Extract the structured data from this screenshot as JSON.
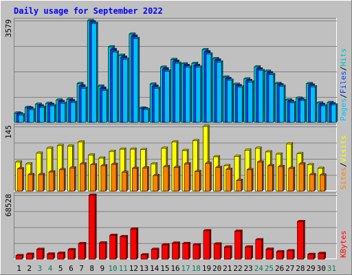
{
  "chart_data": {
    "type": "bar",
    "title": "Daily usage for September 2022",
    "categories": [
      "1",
      "2",
      "3",
      "4",
      "5",
      "6",
      "7",
      "8",
      "9",
      "10",
      "11",
      "12",
      "13",
      "14",
      "15",
      "16",
      "17",
      "18",
      "19",
      "20",
      "21",
      "22",
      "23",
      "24",
      "25",
      "26",
      "27",
      "28",
      "29",
      "30",
      "31"
    ],
    "weekend_days": [
      "3",
      "4",
      "10",
      "11",
      "17",
      "18",
      "24",
      "25",
      "31"
    ],
    "colors": {
      "frame": "#c0c0c0",
      "plot_bg": "#c0c0c0",
      "hits": "#00c0c0",
      "files": "#0040ff",
      "pages": "#00c0ff",
      "visits": "#ffff00",
      "sites": "#ff8000",
      "kbytes": "#ff0000",
      "title": "#0000ff",
      "weekday_tick": "#000000",
      "weekend_tick": "#00805c"
    },
    "panels": [
      {
        "id": "hits-files-pages",
        "ymax_label": "3579",
        "ylim": [
          0,
          3579
        ],
        "legend": [
          {
            "text": "Pages",
            "color": "#00c0ff"
          },
          {
            "text": "/",
            "color": "#000000"
          },
          {
            "text": "Files",
            "color": "#0040ff"
          },
          {
            "text": "/",
            "color": "#000000"
          },
          {
            "text": "Hits",
            "color": "#00c0c0"
          }
        ],
        "series": [
          {
            "name": "Hits",
            "values": [
              329,
              528,
              637,
              670,
              787,
              813,
              1363,
              3579,
              1277,
              2656,
              2360,
              3103,
              502,
              1349,
              1940,
              2213,
              2057,
              2074,
              2558,
              2242,
              1595,
              1340,
              1527,
              1953,
              1797,
              1368,
              788,
              852,
              1363,
              681,
              698
            ]
          },
          {
            "name": "Files",
            "values": [
              300,
              500,
              580,
              630,
              730,
              760,
              1280,
              3530,
              1200,
              2560,
              2290,
              3030,
              480,
              1270,
              1880,
              2150,
              2000,
              2000,
              2480,
              2190,
              1540,
              1290,
              1470,
              1880,
              1740,
              1320,
              740,
              810,
              1310,
              630,
              650
            ]
          },
          {
            "name": "Pages",
            "values": [
              260,
              440,
              530,
              580,
              670,
              700,
              1200,
              3480,
              1120,
              2470,
              2220,
              2950,
              450,
              1200,
              1800,
              2080,
              1940,
              1940,
              2400,
              2120,
              1480,
              1240,
              1420,
              1820,
              1680,
              1270,
              690,
              770,
              1250,
              580,
              610
            ]
          }
        ]
      },
      {
        "id": "visits-sites",
        "ymax_label": "145",
        "ylim": [
          0,
          145
        ],
        "legend": [
          {
            "text": "Sites",
            "color": "#ff8000"
          },
          {
            "text": "/",
            "color": "#000000"
          },
          {
            "text": "Visits",
            "color": "#ffff00"
          }
        ],
        "series": [
          {
            "name": "Visits",
            "values": [
              65,
              61,
              85,
              96,
              102,
              101,
              110,
              81,
              74,
              89,
              94,
              94,
              93,
              61,
              96,
              110,
              91,
              113,
              145,
              77,
              57,
              78,
              92,
              96,
              88,
              83,
              106,
              84,
              59,
              51,
              null
            ]
          },
          {
            "name": "Sites",
            "values": [
              50,
              37,
              37,
              43,
              48,
              52,
              61,
              59,
              57,
              60,
              42,
              51,
              52,
              35,
              55,
              53,
              61,
              44,
              62,
              53,
              49,
              24,
              48,
              65,
              57,
              55,
              51,
              61,
              37,
              36,
              null
            ]
          }
        ]
      },
      {
        "id": "kbytes",
        "ymax_label": "68528",
        "ylim": [
          0,
          68528
        ],
        "legend": [
          {
            "text": "KBytes",
            "color": "#ff0000"
          }
        ],
        "series": [
          {
            "name": "KBytes",
            "values": [
              3800,
              5300,
              10500,
              5500,
              6400,
              10200,
              16700,
              68528,
              17400,
              25600,
              24200,
              32300,
              4700,
              10500,
              15400,
              17200,
              16800,
              15400,
              30500,
              16300,
              13000,
              30000,
              13100,
              20800,
              10700,
              8000,
              9000,
              40300,
              5100,
              6200,
              null
            ]
          }
        ]
      }
    ]
  }
}
